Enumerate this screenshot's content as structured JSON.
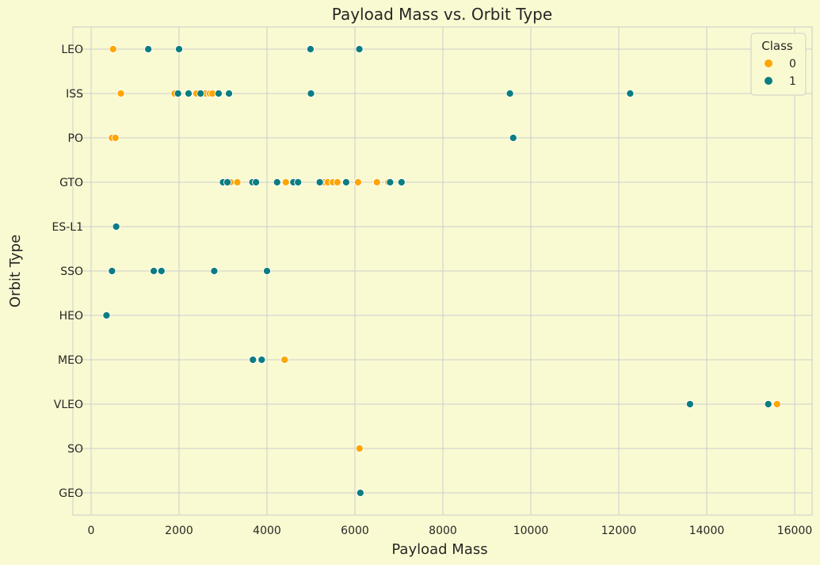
{
  "chart_data": {
    "type": "scatter",
    "title": "Payload Mass vs. Orbit Type",
    "xlabel": "Payload Mass",
    "ylabel": "Orbit Type",
    "xlim": [
      -500,
      16300
    ],
    "xticks": [
      0,
      2000,
      4000,
      6000,
      8000,
      10000,
      12000,
      14000,
      16000
    ],
    "categories": [
      "LEO",
      "ISS",
      "PO",
      "GTO",
      "ES-L1",
      "SSO",
      "HEO",
      "MEO",
      "VLEO",
      "SO",
      "GEO"
    ],
    "grid": true,
    "legend": {
      "title": "Class",
      "placement": "top-right"
    },
    "series": [
      {
        "name": "0",
        "color": "#ffa500",
        "points": [
          {
            "x": 500,
            "y": "LEO"
          },
          {
            "x": 677,
            "y": "ISS"
          },
          {
            "x": 1900,
            "y": "ISS"
          },
          {
            "x": 2395,
            "y": "ISS"
          },
          {
            "x": 2600,
            "y": "ISS"
          },
          {
            "x": 2700,
            "y": "ISS"
          },
          {
            "x": 2760,
            "y": "ISS"
          },
          {
            "x": 475,
            "y": "PO"
          },
          {
            "x": 553,
            "y": "PO"
          },
          {
            "x": 3170,
            "y": "GTO"
          },
          {
            "x": 3325,
            "y": "GTO"
          },
          {
            "x": 4428,
            "y": "GTO"
          },
          {
            "x": 5300,
            "y": "GTO"
          },
          {
            "x": 5383,
            "y": "GTO"
          },
          {
            "x": 5500,
            "y": "GTO"
          },
          {
            "x": 5600,
            "y": "GTO"
          },
          {
            "x": 6070,
            "y": "GTO"
          },
          {
            "x": 6500,
            "y": "GTO"
          },
          {
            "x": 6761,
            "y": "GTO"
          },
          {
            "x": 4400,
            "y": "MEO"
          },
          {
            "x": 15600,
            "y": "VLEO"
          },
          {
            "x": 6104,
            "y": "SO"
          }
        ]
      },
      {
        "name": "1",
        "color": "#0c7d80",
        "points": [
          {
            "x": 1300,
            "y": "LEO"
          },
          {
            "x": 2000,
            "y": "LEO"
          },
          {
            "x": 4990,
            "y": "LEO"
          },
          {
            "x": 6100,
            "y": "LEO"
          },
          {
            "x": 1977,
            "y": "ISS"
          },
          {
            "x": 2216,
            "y": "ISS"
          },
          {
            "x": 2490,
            "y": "ISS"
          },
          {
            "x": 2900,
            "y": "ISS"
          },
          {
            "x": 3136,
            "y": "ISS"
          },
          {
            "x": 5000,
            "y": "ISS"
          },
          {
            "x": 9525,
            "y": "ISS"
          },
          {
            "x": 12259,
            "y": "ISS"
          },
          {
            "x": 9600,
            "y": "PO"
          },
          {
            "x": 3000,
            "y": "GTO"
          },
          {
            "x": 3100,
            "y": "GTO"
          },
          {
            "x": 3669,
            "y": "GTO"
          },
          {
            "x": 3750,
            "y": "GTO"
          },
          {
            "x": 4230,
            "y": "GTO"
          },
          {
            "x": 4600,
            "y": "GTO"
          },
          {
            "x": 4707,
            "y": "GTO"
          },
          {
            "x": 5200,
            "y": "GTO"
          },
          {
            "x": 5800,
            "y": "GTO"
          },
          {
            "x": 6800,
            "y": "GTO"
          },
          {
            "x": 7060,
            "y": "GTO"
          },
          {
            "x": 570,
            "y": "ES-L1"
          },
          {
            "x": 475,
            "y": "SSO"
          },
          {
            "x": 1425,
            "y": "SSO"
          },
          {
            "x": 1600,
            "y": "SSO"
          },
          {
            "x": 2800,
            "y": "SSO"
          },
          {
            "x": 4000,
            "y": "SSO"
          },
          {
            "x": 350,
            "y": "HEO"
          },
          {
            "x": 3680,
            "y": "MEO"
          },
          {
            "x": 3880,
            "y": "MEO"
          },
          {
            "x": 13620,
            "y": "VLEO"
          },
          {
            "x": 15400,
            "y": "VLEO"
          },
          {
            "x": 6123,
            "y": "GEO"
          }
        ]
      }
    ]
  }
}
